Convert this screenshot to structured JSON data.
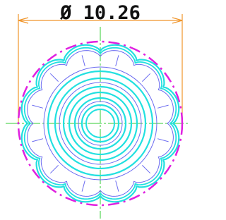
{
  "dimension": {
    "label": "Ø 10.26"
  }
}
